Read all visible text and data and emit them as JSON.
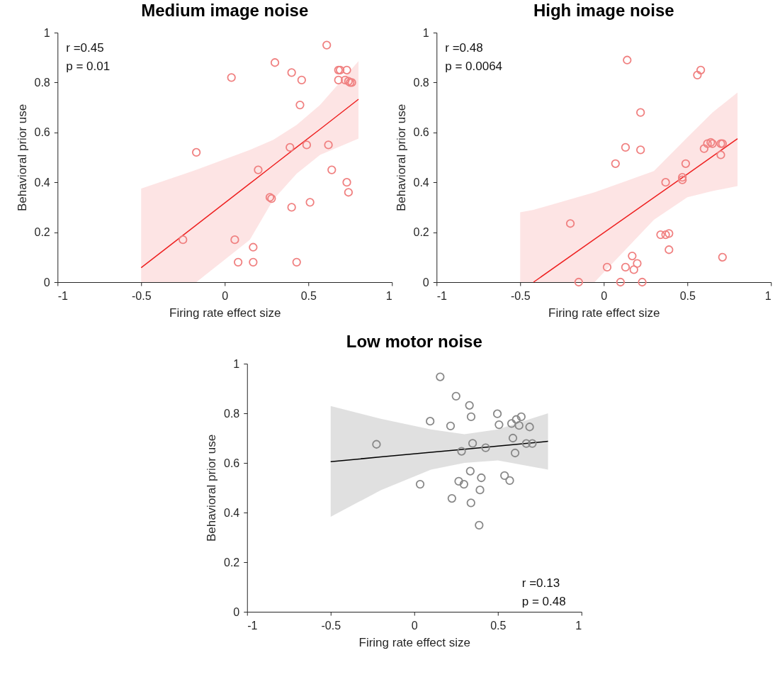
{
  "chart_data": [
    {
      "type": "scatter",
      "title": "Medium image noise",
      "xlabel": "Firing rate effect size",
      "ylabel": "Behavioral prior use",
      "xlim": [
        -1,
        1
      ],
      "xticks": [
        -1,
        -0.5,
        0,
        0.5,
        1
      ],
      "ylim": [
        0,
        1
      ],
      "yticks": [
        0,
        0.2,
        0.4,
        0.6,
        0.8,
        1
      ],
      "marker": "circle",
      "annotations": [
        "r =0.45",
        "p = 0.01"
      ],
      "series": [
        {
          "type": "scatter",
          "color": "#f08080",
          "x": [
            0.04,
            0.3,
            0.4,
            0.46,
            0.45,
            0.61,
            0.68,
            0.69,
            0.73,
            0.68,
            0.72,
            0.75,
            0.76,
            0.74,
            -0.17,
            0.2,
            0.39,
            0.49,
            0.62,
            0.64,
            0.73,
            0.74,
            0.27,
            0.28,
            0.4,
            0.51,
            -0.25,
            0.06,
            0.17,
            0.08,
            0.17,
            0.43
          ],
          "values": [
            0.82,
            0.88,
            0.84,
            0.81,
            0.71,
            0.95,
            0.85,
            0.85,
            0.85,
            0.81,
            0.81,
            0.8,
            0.8,
            0.805,
            0.52,
            0.45,
            0.54,
            0.55,
            0.55,
            0.45,
            0.4,
            0.36,
            0.34,
            0.335,
            0.3,
            0.32,
            0.17,
            0.17,
            0.14,
            0.08,
            0.08,
            0.08
          ]
        },
        {
          "type": "line",
          "marker": "none",
          "color": "#ee2020",
          "x": [
            -0.5,
            -0.17,
            0.15,
            0.29,
            0.43,
            0.57,
            0.8
          ],
          "values": [
            0.058,
            0.229,
            0.395,
            0.468,
            0.541,
            0.613,
            0.733
          ],
          "lower": [
            0,
            0,
            0.17,
            0.33,
            0.435,
            0.51,
            0.575
          ],
          "upper": [
            0.375,
            0.45,
            0.53,
            0.57,
            0.63,
            0.71,
            0.886
          ]
        }
      ]
    },
    {
      "type": "scatter",
      "title": "High image noise",
      "xlabel": "Firing rate effect size",
      "ylabel": "Behavioral prior use",
      "xlim": [
        -1,
        1
      ],
      "xticks": [
        -1,
        -0.5,
        0,
        0.5,
        1
      ],
      "ylim": [
        0,
        1
      ],
      "yticks": [
        0,
        0.2,
        0.4,
        0.6,
        0.8,
        1
      ],
      "marker": "circle",
      "annotations": [
        "r =0.48",
        "p = 0.0064"
      ],
      "series": [
        {
          "type": "scatter",
          "color": "#f08080",
          "x": [
            0.14,
            0.56,
            0.58,
            0.22,
            0.13,
            0.22,
            0.07,
            0.49,
            0.37,
            0.47,
            0.47,
            0.6,
            0.62,
            0.64,
            0.65,
            0.7,
            0.71,
            0.7,
            -0.2,
            0.34,
            0.37,
            0.39,
            0.39,
            0.71,
            0.17,
            0.2,
            0.13,
            0.18,
            0.02,
            -0.15,
            0.1,
            0.23
          ],
          "values": [
            0.89,
            0.83,
            0.85,
            0.68,
            0.54,
            0.53,
            0.475,
            0.475,
            0.4,
            0.42,
            0.41,
            0.535,
            0.555,
            0.56,
            0.555,
            0.555,
            0.555,
            0.51,
            0.235,
            0.19,
            0.19,
            0.195,
            0.13,
            0.1,
            0.105,
            0.075,
            0.06,
            0.05,
            0.06,
            0,
            0,
            0
          ]
        },
        {
          "type": "line",
          "marker": "none",
          "color": "#ee2020",
          "x": [
            -0.5,
            -0.42,
            -0.055,
            0.3,
            0.5,
            0.65,
            0.8
          ],
          "values": [
            null,
            0,
            0.172,
            0.339,
            0.433,
            0.504,
            0.575
          ],
          "lower": [
            0,
            0,
            0,
            0.25,
            0.34,
            0.365,
            0.385
          ],
          "upper": [
            0.28,
            0.29,
            0.36,
            0.445,
            0.58,
            0.68,
            0.76
          ]
        }
      ]
    },
    {
      "type": "scatter",
      "title": "Low motor noise",
      "xlabel": "Firing rate effect size",
      "ylabel": "Behavioral prior use",
      "xlim": [
        -1,
        1
      ],
      "xticks": [
        -1,
        -0.5,
        0,
        0.5,
        1
      ],
      "ylim": [
        0,
        1
      ],
      "yticks": [
        0,
        0.2,
        0.4,
        0.6,
        0.8,
        1
      ],
      "marker": "circle",
      "annotations": [
        "r =0.13",
        "p = 0.48"
      ],
      "series": [
        {
          "type": "scatter",
          "color": "#888888",
          "x": [
            0.155,
            0.25,
            0.33,
            0.34,
            0.095,
            0.217,
            0.497,
            0.507,
            0.582,
            0.61,
            0.64,
            0.627,
            0.69,
            0.59,
            0.67,
            0.706,
            0.603,
            -0.226,
            0.349,
            0.283,
            0.427,
            0.335,
            0.401,
            0.266,
            0.297,
            0.54,
            0.571,
            0.035,
            0.393,
            0.225,
            0.339,
            0.388
          ],
          "values": [
            0.947,
            0.869,
            0.832,
            0.786,
            0.768,
            0.749,
            0.798,
            0.754,
            0.759,
            0.775,
            0.786,
            0.751,
            0.745,
            0.7,
            0.678,
            0.678,
            0.64,
            0.675,
            0.679,
            0.647,
            0.661,
            0.567,
            0.54,
            0.526,
            0.514,
            0.549,
            0.529,
            0.514,
            0.491,
            0.457,
            0.439,
            0.349
          ]
        },
        {
          "type": "line",
          "marker": "none",
          "color": "#000000",
          "x": [
            -0.5,
            -0.2,
            0.1,
            0.3,
            0.5,
            0.8
          ],
          "values": [
            0.605,
            0.624,
            0.643,
            0.655,
            0.668,
            0.687
          ],
          "lower": [
            0.383,
            0.49,
            0.573,
            0.6,
            0.61,
            0.573
          ],
          "upper": [
            0.829,
            0.778,
            0.735,
            0.716,
            0.735,
            0.8
          ]
        }
      ]
    }
  ]
}
